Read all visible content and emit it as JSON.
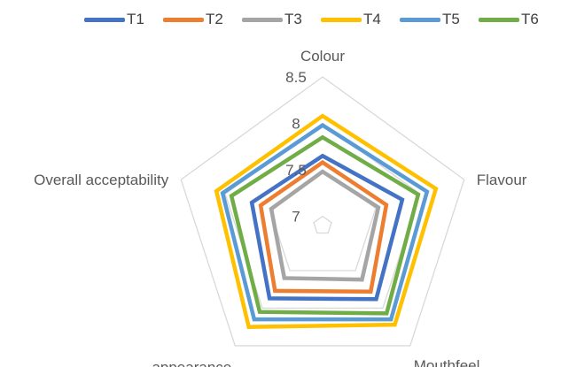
{
  "chart_data": {
    "type": "radar",
    "axes": [
      "Colour",
      "Flavour",
      "Mouthfeel",
      "appearance",
      "Overall acceptability"
    ],
    "ticks": [
      "7",
      "7.5",
      "8",
      "8.5"
    ],
    "rmin": 6.9,
    "rmax": 8.5,
    "grid": true,
    "legend": "top",
    "series": [
      {
        "name": "T1",
        "color": "#4472C4",
        "values": [
          7.65,
          7.8,
          7.88,
          7.87,
          7.7
        ]
      },
      {
        "name": "T2",
        "color": "#ED7D31",
        "values": [
          7.58,
          7.62,
          7.78,
          7.77,
          7.6
        ]
      },
      {
        "name": "T3",
        "color": "#A5A5A5",
        "values": [
          7.48,
          7.53,
          7.62,
          7.6,
          7.48
        ]
      },
      {
        "name": "T4",
        "color": "#FFC000",
        "values": [
          8.08,
          8.18,
          8.22,
          8.25,
          8.1
        ]
      },
      {
        "name": "T5",
        "color": "#5B9BD5",
        "values": [
          7.98,
          8.08,
          8.15,
          8.15,
          8.03
        ]
      },
      {
        "name": "T6",
        "color": "#70AD47",
        "values": [
          7.85,
          7.98,
          8.07,
          8.05,
          7.93
        ]
      }
    ]
  }
}
